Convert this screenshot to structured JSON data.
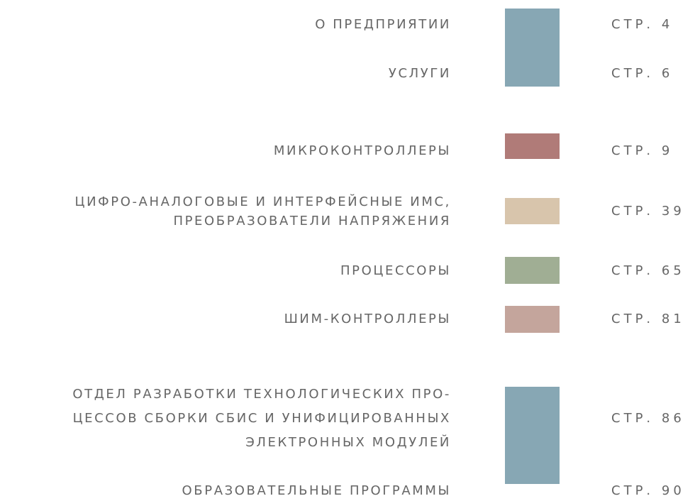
{
  "entries": [
    {
      "lines": [
        "О ПРЕДПРИЯТИИ"
      ],
      "page": "СТР. 4"
    },
    {
      "lines": [
        "УСЛУГИ"
      ],
      "page": "СТР. 6"
    },
    {
      "lines": [
        "МИКРОКОНТРОЛЛЕРЫ"
      ],
      "page": "СТР. 9"
    },
    {
      "lines": [
        "ЦИФРО-АНАЛОГОВЫЕ И ИНТЕРФЕЙСНЫЕ ИМС,",
        "ПРЕОБРАЗОВАТЕЛИ НАПРЯЖЕНИЯ"
      ],
      "page": "СТР. 39"
    },
    {
      "lines": [
        "ПРОЦЕССОРЫ"
      ],
      "page": "СТР. 65"
    },
    {
      "lines": [
        "ШИМ-КОНТРОЛЛЕРЫ"
      ],
      "page": "СТР. 81"
    },
    {
      "lines": [
        "ОТДЕЛ РАЗРАБОТКИ ТЕХНОЛОГИЧЕСКИХ ПРО-",
        "ЦЕССОВ СБОРКИ СБИС И УНИФИЦИРОВАННЫХ",
        "ЭЛЕКТРОННЫХ МОДУЛЕЙ"
      ],
      "page": "СТР. 86"
    },
    {
      "lines": [
        "ОБРАЗОВАТЕЛЬНЫЕ ПРОГРАММЫ"
      ],
      "page": "СТР. 90"
    }
  ]
}
